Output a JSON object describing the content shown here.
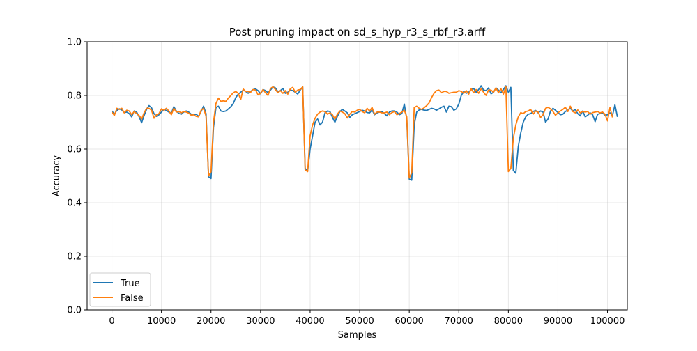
{
  "chart_data": {
    "type": "line",
    "title": "Post pruning impact on sd_s_hyp_r3_s_rbf_r3.arff",
    "xlabel": "Samples",
    "ylabel": "Accuracy",
    "xlim": [
      -5000,
      104000
    ],
    "ylim": [
      0.0,
      1.0
    ],
    "xticks": [
      0,
      10000,
      20000,
      30000,
      40000,
      50000,
      60000,
      70000,
      80000,
      90000,
      100000
    ],
    "yticks": [
      0.0,
      0.2,
      0.4,
      0.6,
      0.8,
      1.0
    ],
    "xtick_labels": [
      "0",
      "10000",
      "20000",
      "30000",
      "40000",
      "50000",
      "60000",
      "70000",
      "80000",
      "90000",
      "100000"
    ],
    "ytick_labels": [
      "0.0",
      "0.2",
      "0.4",
      "0.6",
      "0.8",
      "1.0"
    ],
    "grid": true,
    "legend_position": "lower-left",
    "x_start": 0,
    "x_step": 500,
    "series": [
      {
        "name": "True",
        "color": "#1f77b4",
        "values": [
          0.742,
          0.73,
          0.744,
          0.75,
          0.746,
          0.736,
          0.738,
          0.732,
          0.72,
          0.742,
          0.738,
          0.72,
          0.698,
          0.725,
          0.748,
          0.762,
          0.754,
          0.732,
          0.722,
          0.728,
          0.738,
          0.748,
          0.744,
          0.738,
          0.734,
          0.758,
          0.742,
          0.733,
          0.73,
          0.738,
          0.742,
          0.738,
          0.73,
          0.728,
          0.73,
          0.722,
          0.74,
          0.76,
          0.732,
          0.497,
          0.49,
          0.68,
          0.755,
          0.76,
          0.742,
          0.74,
          0.742,
          0.75,
          0.758,
          0.77,
          0.792,
          0.805,
          0.812,
          0.82,
          0.815,
          0.808,
          0.815,
          0.822,
          0.824,
          0.818,
          0.806,
          0.822,
          0.818,
          0.81,
          0.82,
          0.832,
          0.828,
          0.814,
          0.818,
          0.826,
          0.808,
          0.812,
          0.82,
          0.818,
          0.812,
          0.805,
          0.82,
          0.832,
          0.528,
          0.518,
          0.6,
          0.65,
          0.7,
          0.712,
          0.69,
          0.7,
          0.735,
          0.742,
          0.74,
          0.718,
          0.7,
          0.722,
          0.74,
          0.748,
          0.742,
          0.735,
          0.718,
          0.728,
          0.732,
          0.736,
          0.74,
          0.745,
          0.742,
          0.736,
          0.735,
          0.746,
          0.728,
          0.735,
          0.738,
          0.74,
          0.732,
          0.724,
          0.738,
          0.742,
          0.742,
          0.738,
          0.728,
          0.732,
          0.768,
          0.712,
          0.488,
          0.484,
          0.69,
          0.738,
          0.746,
          0.748,
          0.745,
          0.744,
          0.748,
          0.752,
          0.75,
          0.745,
          0.75,
          0.756,
          0.76,
          0.738,
          0.76,
          0.758,
          0.745,
          0.75,
          0.768,
          0.8,
          0.815,
          0.808,
          0.812,
          0.822,
          0.826,
          0.812,
          0.822,
          0.836,
          0.82,
          0.818,
          0.828,
          0.806,
          0.812,
          0.828,
          0.82,
          0.81,
          0.822,
          0.836,
          0.812,
          0.83,
          0.52,
          0.51,
          0.61,
          0.66,
          0.7,
          0.72,
          0.73,
          0.732,
          0.74,
          0.744,
          0.735,
          0.742,
          0.738,
          0.7,
          0.712,
          0.742,
          0.752,
          0.745,
          0.736,
          0.728,
          0.73,
          0.74,
          0.745,
          0.752,
          0.742,
          0.748,
          0.732,
          0.724,
          0.742,
          0.72,
          0.726,
          0.735,
          0.728,
          0.702,
          0.73,
          0.732,
          0.735,
          0.726,
          0.728,
          0.735,
          0.725,
          0.765,
          0.72
        ],
        "note_removed": true
      },
      {
        "name": "False",
        "color": "#ff7f0e",
        "values": [
          0.738,
          0.725,
          0.752,
          0.748,
          0.752,
          0.735,
          0.745,
          0.742,
          0.728,
          0.74,
          0.732,
          0.725,
          0.712,
          0.735,
          0.752,
          0.752,
          0.745,
          0.715,
          0.728,
          0.732,
          0.75,
          0.745,
          0.752,
          0.742,
          0.728,
          0.752,
          0.738,
          0.74,
          0.735,
          0.74,
          0.738,
          0.734,
          0.726,
          0.728,
          0.722,
          0.72,
          0.745,
          0.752,
          0.722,
          0.5,
          0.515,
          0.7,
          0.77,
          0.79,
          0.778,
          0.78,
          0.778,
          0.79,
          0.8,
          0.81,
          0.815,
          0.808,
          0.785,
          0.824,
          0.815,
          0.815,
          0.812,
          0.822,
          0.82,
          0.802,
          0.808,
          0.822,
          0.81,
          0.8,
          0.826,
          0.832,
          0.822,
          0.81,
          0.818,
          0.808,
          0.818,
          0.805,
          0.825,
          0.83,
          0.812,
          0.82,
          0.822,
          0.832,
          0.522,
          0.516,
          0.65,
          0.69,
          0.715,
          0.73,
          0.738,
          0.742,
          0.74,
          0.73,
          0.735,
          0.728,
          0.712,
          0.73,
          0.742,
          0.738,
          0.732,
          0.716,
          0.73,
          0.74,
          0.738,
          0.745,
          0.748,
          0.74,
          0.735,
          0.752,
          0.742,
          0.755,
          0.73,
          0.738,
          0.738,
          0.735,
          0.735,
          0.738,
          0.728,
          0.736,
          0.74,
          0.728,
          0.732,
          0.738,
          0.745,
          0.72,
          0.492,
          0.512,
          0.755,
          0.76,
          0.752,
          0.748,
          0.754,
          0.762,
          0.772,
          0.792,
          0.808,
          0.818,
          0.82,
          0.81,
          0.815,
          0.815,
          0.808,
          0.81,
          0.812,
          0.812,
          0.818,
          0.815,
          0.808,
          0.818,
          0.805,
          0.825,
          0.81,
          0.822,
          0.808,
          0.825,
          0.812,
          0.8,
          0.82,
          0.82,
          0.812,
          0.828,
          0.81,
          0.825,
          0.805,
          0.832,
          0.516,
          0.528,
          0.64,
          0.69,
          0.72,
          0.736,
          0.732,
          0.74,
          0.742,
          0.748,
          0.73,
          0.742,
          0.738,
          0.718,
          0.728,
          0.752,
          0.756,
          0.75,
          0.74,
          0.726,
          0.735,
          0.742,
          0.748,
          0.756,
          0.74,
          0.76,
          0.74,
          0.735,
          0.746,
          0.735,
          0.74,
          0.738,
          0.74,
          0.73,
          0.736,
          0.738,
          0.74,
          0.735,
          0.738,
          0.73,
          0.705,
          0.755,
          0.718
        ]
      }
    ]
  }
}
